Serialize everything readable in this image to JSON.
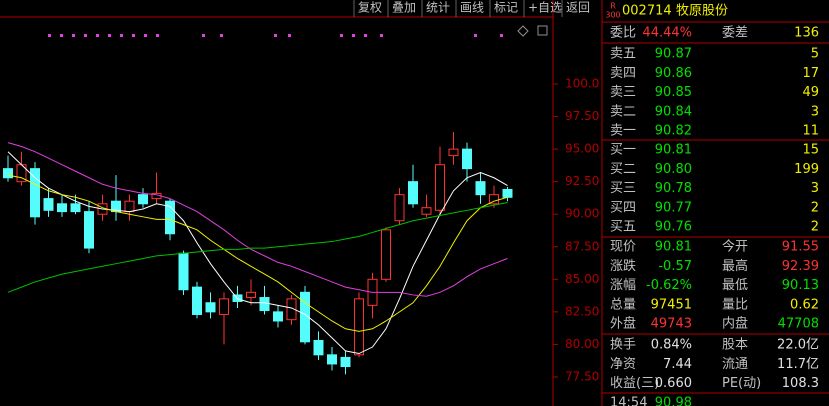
{
  "toolbar": [
    "复权",
    "叠加",
    "统计",
    "画线",
    "标记",
    "+自选",
    "返回"
  ],
  "chart": {
    "type": "candlestick",
    "ylim": [
      75.27,
      105.07
    ],
    "yticks": [
      {
        "value": 77.5,
        "label": "77.50"
      },
      {
        "value": 80,
        "label": "80.00"
      },
      {
        "value": 82.5,
        "label": "82.50"
      },
      {
        "value": 85,
        "label": "85.00"
      },
      {
        "value": 87.5,
        "label": "87.50"
      },
      {
        "value": 90,
        "label": "90.00"
      },
      {
        "value": 92.5,
        "label": "92.50"
      },
      {
        "value": 95,
        "label": "95.00"
      },
      {
        "value": 97.5,
        "label": "97.50"
      },
      {
        "value": 100,
        "label": "100.0"
      }
    ],
    "up_color": "#ff3232",
    "down_color": "#54fcfc",
    "open": [
      93.5,
      92.5,
      93.5,
      91.2,
      90.8,
      90.8,
      90.2,
      90,
      91,
      90.2,
      91.5,
      91.2,
      91,
      87,
      84.4,
      83.2,
      82.3,
      83.8,
      83.6,
      83.6,
      82.5,
      81.9,
      84,
      80.3,
      79.2,
      79,
      79.2,
      83,
      85,
      89.5,
      92.5,
      90,
      90.3,
      94.5,
      95,
      92.5,
      90.8,
      91.9
    ],
    "high": [
      94.5,
      94.8,
      94,
      92,
      91.5,
      91.5,
      91,
      91.5,
      93,
      91.5,
      92,
      93.2,
      91.2,
      87.2,
      84.8,
      84,
      84,
      84.5,
      85,
      84.5,
      83,
      83.8,
      84.5,
      81,
      79.8,
      79.5,
      84,
      85.5,
      89,
      92,
      93.8,
      91.5,
      95.2,
      96.3,
      95.5,
      93.2,
      92.2,
      92.1
    ],
    "low": [
      92.5,
      92.2,
      89.2,
      89.8,
      89.8,
      90,
      87,
      89.5,
      89.5,
      89.5,
      90.5,
      90.8,
      88,
      83.8,
      82,
      82,
      80,
      82.8,
      83,
      82.3,
      81.3,
      81.5,
      80,
      78.8,
      78,
      77.7,
      79,
      82,
      84.8,
      89.2,
      90.5,
      89.8,
      90,
      93.8,
      92.5,
      90.8,
      90.5,
      91
    ],
    "close": [
      92.8,
      93.8,
      89.8,
      90.3,
      90.2,
      90.2,
      87.4,
      90.8,
      90.2,
      91,
      90.8,
      91.6,
      88.5,
      84.2,
      82.3,
      82.5,
      83.5,
      83.3,
      84,
      82.6,
      81.8,
      83.5,
      80.2,
      79.2,
      78.5,
      78.3,
      83.5,
      85,
      88.8,
      91.5,
      90.8,
      90.5,
      93.8,
      95,
      93.5,
      91.5,
      91.5,
      91.3
    ],
    "series": [
      {
        "color": "#ffffff",
        "values": [
          94.8,
          93.8,
          92.8,
          92,
          91.5,
          91,
          90.6,
          90.4,
          90.3,
          90.2,
          90.4,
          90.8,
          90.6,
          89.5,
          87.8,
          86.2,
          84.8,
          83.5,
          83.2,
          83.2,
          83,
          82.8,
          82.3,
          81.5,
          80.5,
          79.5,
          79.3,
          79.8,
          81.2,
          83.5,
          86,
          88,
          90,
          91.8,
          92.8,
          93.2,
          92.8,
          92.2
        ]
      },
      {
        "color": "#f0f000",
        "values": [
          93,
          92.8,
          92.3,
          91.8,
          91.5,
          91.3,
          91,
          90.5,
          90.2,
          90,
          89.8,
          89.6,
          89.6,
          89.2,
          88.8,
          88,
          87.3,
          86.6,
          86,
          85.4,
          84.8,
          84,
          83.2,
          82.5,
          81.8,
          81.2,
          81,
          81.2,
          81.8,
          82.5,
          83.2,
          84.5,
          86,
          87.8,
          89.5,
          90.5,
          91,
          91.3
        ]
      },
      {
        "color": "#e040e0",
        "values": [
          95.5,
          95.2,
          94.8,
          94.3,
          93.8,
          93.3,
          92.8,
          92.3,
          92,
          91.8,
          91.6,
          91.5,
          91.2,
          90.7,
          90.2,
          89.5,
          88.8,
          88,
          87.3,
          86.8,
          86.3,
          86,
          85.6,
          85.2,
          84.8,
          84.4,
          84.2,
          84,
          84,
          84,
          83.8,
          83.7,
          84,
          84.5,
          85.2,
          85.8,
          86.2,
          86.6
        ]
      },
      {
        "color": "#00c000",
        "values": [
          84,
          84.4,
          84.8,
          85.1,
          85.4,
          85.6,
          85.8,
          86,
          86.2,
          86.4,
          86.6,
          86.8,
          86.9,
          87,
          87.1,
          87.2,
          87.3,
          87.3,
          87.4,
          87.4,
          87.5,
          87.6,
          87.7,
          87.8,
          87.9,
          88.1,
          88.3,
          88.6,
          88.9,
          89.2,
          89.5,
          89.7,
          89.9,
          90.1,
          90.3,
          90.5,
          90.7,
          90.9
        ]
      }
    ]
  },
  "quote": {
    "badge_top": "R",
    "badge_bottom": "300",
    "code": "002714",
    "name": "牧原股份",
    "ratio": [
      {
        "text": "委比",
        "color": "#c0c0c0"
      },
      {
        "text": "44.44%",
        "color": "#ff3232"
      },
      {
        "text": "委差",
        "color": "#c0c0c0"
      },
      {
        "text": "136",
        "color": "#f0f000"
      }
    ],
    "sell": [
      [
        {
          "text": "卖五",
          "color": "#c0c0c0"
        },
        {
          "text": "90.87",
          "color": "#00e000"
        },
        {
          "text": "5",
          "color": "#f0f000"
        }
      ],
      [
        {
          "text": "卖四",
          "color": "#c0c0c0"
        },
        {
          "text": "90.86",
          "color": "#00e000"
        },
        {
          "text": "17",
          "color": "#f0f000"
        }
      ],
      [
        {
          "text": "卖三",
          "color": "#c0c0c0"
        },
        {
          "text": "90.85",
          "color": "#00e000"
        },
        {
          "text": "49",
          "color": "#f0f000"
        }
      ],
      [
        {
          "text": "卖二",
          "color": "#c0c0c0"
        },
        {
          "text": "90.84",
          "color": "#00e000"
        },
        {
          "text": "3",
          "color": "#f0f000"
        }
      ],
      [
        {
          "text": "卖一",
          "color": "#c0c0c0"
        },
        {
          "text": "90.82",
          "color": "#00e000"
        },
        {
          "text": "11",
          "color": "#f0f000"
        }
      ]
    ],
    "buy": [
      [
        {
          "text": "买一",
          "color": "#c0c0c0"
        },
        {
          "text": "90.81",
          "color": "#00e000"
        },
        {
          "text": "15",
          "color": "#f0f000"
        }
      ],
      [
        {
          "text": "买二",
          "color": "#c0c0c0"
        },
        {
          "text": "90.80",
          "color": "#00e000"
        },
        {
          "text": "199",
          "color": "#f0f000"
        }
      ],
      [
        {
          "text": "买三",
          "color": "#c0c0c0"
        },
        {
          "text": "90.78",
          "color": "#00e000"
        },
        {
          "text": "3",
          "color": "#f0f000"
        }
      ],
      [
        {
          "text": "买四",
          "color": "#c0c0c0"
        },
        {
          "text": "90.77",
          "color": "#00e000"
        },
        {
          "text": "2",
          "color": "#f0f000"
        }
      ],
      [
        {
          "text": "买五",
          "color": "#c0c0c0"
        },
        {
          "text": "90.76",
          "color": "#00e000"
        },
        {
          "text": "2",
          "color": "#f0f000"
        }
      ]
    ],
    "stats": [
      [
        {
          "text": "现价",
          "color": "#c0c0c0"
        },
        {
          "text": "90.81",
          "color": "#00e000"
        },
        {
          "text": "今开",
          "color": "#c0c0c0"
        },
        {
          "text": "91.55",
          "color": "#ff3232"
        }
      ],
      [
        {
          "text": "涨跌",
          "color": "#c0c0c0"
        },
        {
          "text": "-0.57",
          "color": "#00e000"
        },
        {
          "text": "最高",
          "color": "#c0c0c0"
        },
        {
          "text": "92.39",
          "color": "#ff3232"
        }
      ],
      [
        {
          "text": "涨幅",
          "color": "#c0c0c0"
        },
        {
          "text": "-0.62%",
          "color": "#00e000"
        },
        {
          "text": "最低",
          "color": "#c0c0c0"
        },
        {
          "text": "90.13",
          "color": "#00e000"
        }
      ],
      [
        {
          "text": "总量",
          "color": "#c0c0c0"
        },
        {
          "text": "97451",
          "color": "#f0f000"
        },
        {
          "text": "量比",
          "color": "#c0c0c0"
        },
        {
          "text": "0.62",
          "color": "#f0f000"
        }
      ],
      [
        {
          "text": "外盘",
          "color": "#c0c0c0"
        },
        {
          "text": "49743",
          "color": "#ff3232"
        },
        {
          "text": "内盘",
          "color": "#c0c0c0"
        },
        {
          "text": "47708",
          "color": "#00e000"
        }
      ]
    ],
    "fund": [
      [
        {
          "text": "换手",
          "color": "#c0c0c0"
        },
        {
          "text": "0.84%",
          "color": "#e0e0e0"
        },
        {
          "text": "股本",
          "color": "#c0c0c0"
        },
        {
          "text": "22.0亿",
          "color": "#e0e0e0"
        }
      ],
      [
        {
          "text": "净资",
          "color": "#c0c0c0"
        },
        {
          "text": "7.44",
          "color": "#e0e0e0"
        },
        {
          "text": "流通",
          "color": "#c0c0c0"
        },
        {
          "text": "11.7亿",
          "color": "#e0e0e0"
        }
      ],
      [
        {
          "text": "收益(三)",
          "color": "#c0c0c0"
        },
        {
          "text": "0.660",
          "color": "#e0e0e0"
        },
        {
          "text": "PE(动)",
          "color": "#c0c0c0"
        },
        {
          "text": "108.3",
          "color": "#e0e0e0"
        }
      ]
    ],
    "tick": [
      {
        "text": "14:54",
        "color": "#c0c0c0"
      },
      {
        "text": "90.98",
        "color": "#00e000"
      }
    ]
  }
}
